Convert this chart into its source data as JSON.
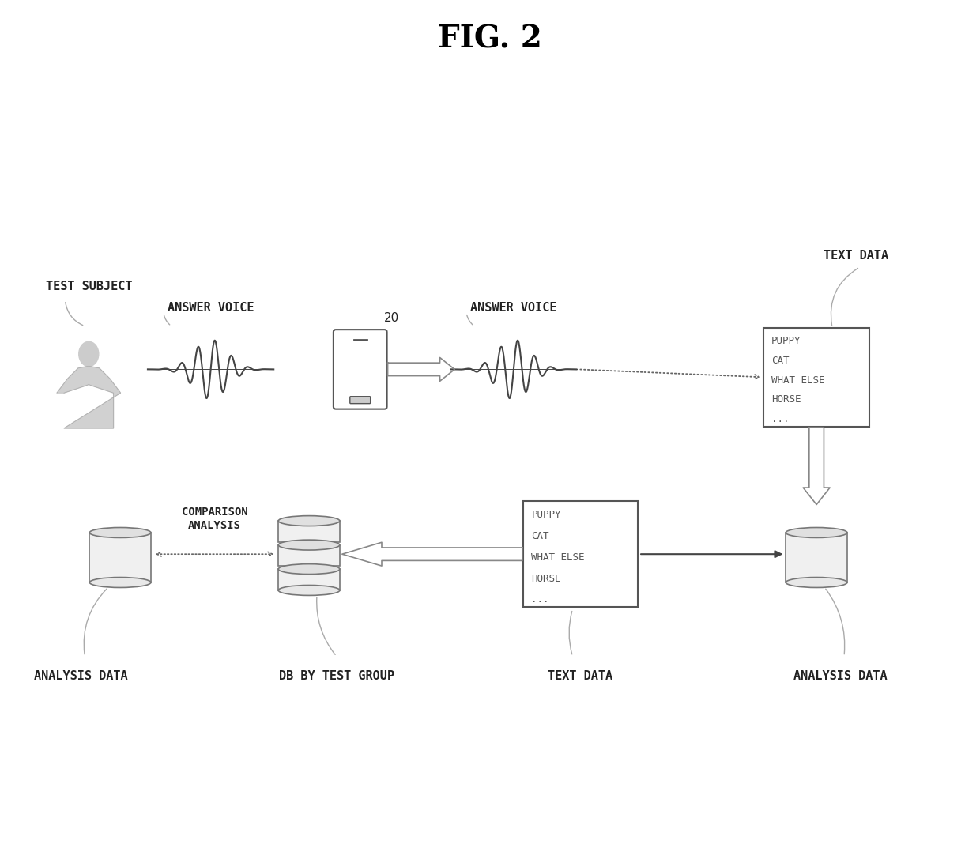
{
  "title": "FIG. 2",
  "title_fontsize": 28,
  "title_fontweight": "bold",
  "bg_color": "#ffffff",
  "label_color": "#222222",
  "label_fontsize": 11,
  "diagram_color": "#444444",
  "text_box1_items": [
    "PUPPY",
    "CAT",
    "WHAT ELSE",
    "HORSE",
    "..."
  ],
  "text_box2_items": [
    "PUPPY",
    "CAT",
    "WHAT ELSE",
    "HORSE",
    "..."
  ],
  "top_labels": {
    "test_subject": "TEST SUBJECT",
    "answer_voice_left": "ANSWER VOICE",
    "device_num": "20",
    "answer_voice_right": "ANSWER VOICE",
    "text_data_top": "TEXT DATA"
  },
  "bottom_labels": {
    "analysis_data_left": "ANALYSIS DATA",
    "db_by_test_group": "DB BY TEST GROUP",
    "text_data_bottom": "TEXT DATA",
    "analysis_data_right": "ANALYSIS DATA",
    "comparison_analysis": "COMPARISON\nANALYSIS"
  }
}
